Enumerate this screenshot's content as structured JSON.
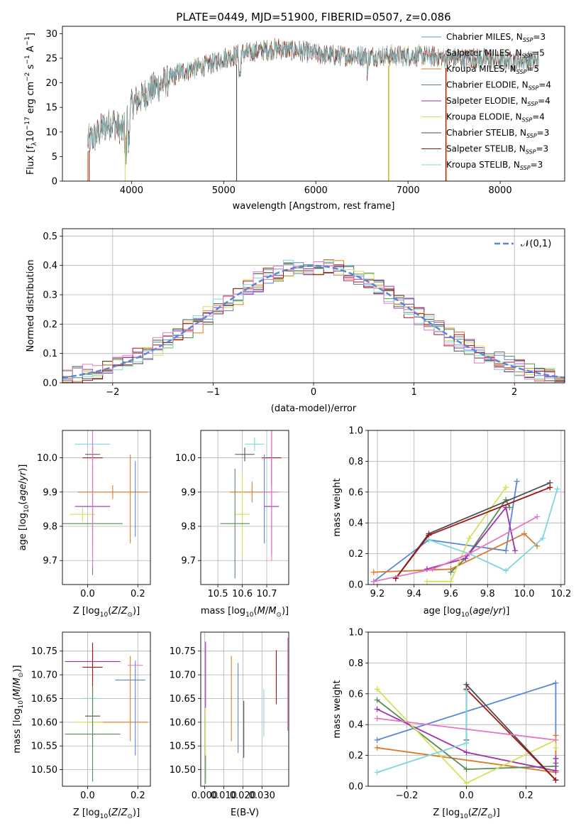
{
  "chart_data": [
    {
      "id": "spectrum",
      "type": "line",
      "title": "PLATE=0449, MJD=51900, FIBERID=0507, z=0.086",
      "xlabel": "wavelength [Angstrom, rest frame]",
      "ylabel": "Flux [f_λ 10^-17 erg cm^-2 s^-1 A^-1]",
      "xlim": [
        3250,
        8700
      ],
      "ylim": [
        0,
        31.5
      ],
      "xticks": [
        4000,
        5000,
        6000,
        7000,
        8000
      ],
      "yticks": [
        0,
        5,
        10,
        15,
        20,
        25,
        30
      ],
      "grid": false,
      "legend_position": "right",
      "legend": [
        {
          "base": "Chabrier MILES, N",
          "sub": "SSP",
          "tail": "=3",
          "color": "#6b8fd6"
        },
        {
          "base": "Salpeter MILES, N",
          "sub": "SSP",
          "tail": "=5",
          "color": "#e0a07a"
        },
        {
          "base": "Kroupa MILES, N",
          "sub": "SSP",
          "tail": "=5",
          "color": "#d97b2c"
        },
        {
          "base": "Chabrier ELODIE, N",
          "sub": "SSP",
          "tail": "=4",
          "color": "#5a8a5a"
        },
        {
          "base": "Salpeter ELODIE, N",
          "sub": "SSP",
          "tail": "=4",
          "color": "#9b30b0"
        },
        {
          "base": "Kroupa ELODIE, N",
          "sub": "SSP",
          "tail": "=4",
          "color": "#d4e157"
        },
        {
          "base": "Chabrier STELIB, N",
          "sub": "SSP",
          "tail": "=3",
          "color": "#4d4d4d"
        },
        {
          "base": "Salpeter STELIB, N",
          "sub": "SSP",
          "tail": "=3",
          "color": "#a01414"
        },
        {
          "base": "Kroupa STELIB, N",
          "sub": "SSP",
          "tail": "=3",
          "color": "#7fd6dc"
        }
      ],
      "continuum": {
        "x": [
          3520,
          3600,
          3700,
          3800,
          3900,
          3950,
          4000,
          4100,
          4200,
          4300,
          4400,
          4500,
          4600,
          4700,
          4800,
          4900,
          5000,
          5200,
          5400,
          5600,
          5800,
          6000,
          6200,
          6400,
          6600,
          6800,
          7000,
          7200,
          7400,
          7600,
          7800,
          8000,
          8200,
          8400
        ],
        "y": [
          8,
          9,
          11,
          12,
          10,
          13,
          15.5,
          17,
          18.5,
          19.5,
          20.5,
          22,
          22.5,
          23,
          23.5,
          24,
          25,
          26,
          26.5,
          27,
          26.5,
          26,
          25.5,
          25.5,
          25.5,
          25.5,
          25.5,
          25.5,
          25,
          25,
          25,
          24.5,
          24.5,
          24.5
        ]
      }
    },
    {
      "id": "residuals",
      "type": "histogram",
      "xlabel": "(data-model)/error",
      "ylabel": "Normed distribution",
      "xlim": [
        -2.5,
        2.5
      ],
      "ylim": [
        0,
        0.525
      ],
      "xticks": [
        -2,
        -1,
        0,
        1,
        2
      ],
      "yticks": [
        0.0,
        0.1,
        0.2,
        0.3,
        0.4,
        0.5
      ],
      "grid": true,
      "bin_width": 0.1,
      "reference_label": "𝒩(0,1)",
      "reference_color": "#5a86d8",
      "colors": [
        "#5a86d8",
        "#d97b2c",
        "#5a8a5a",
        "#9b30b0",
        "#d4e157",
        "#4d4d4d",
        "#a01414",
        "#7fd6dc",
        "#e377c2"
      ]
    },
    {
      "id": "age-vs-Z",
      "type": "scatter",
      "xlabel": "Z [log10(Z/Z⊙)]",
      "ylabel": "age [log10(age/yr)]",
      "xlim": [
        -0.1,
        0.25
      ],
      "ylim": [
        9.63,
        10.08
      ],
      "xticks": [
        0.0,
        0.2
      ],
      "yticks": [
        9.7,
        9.8,
        9.9,
        10.0
      ],
      "grid": true,
      "points": [
        {
          "x": 0.02,
          "y": 10.04,
          "xerr": 0.07,
          "yerr": 0.02,
          "color": "#7fd6dc"
        },
        {
          "x": 0.02,
          "y": 10.01,
          "xerr": 0.03,
          "yerr": 0.02,
          "color": "#4d4d4d"
        },
        {
          "x": 0.02,
          "y": 10.0,
          "xerr": 0.04,
          "yerr": 0.035,
          "color": "#a01414"
        },
        {
          "x": 0.1,
          "y": 9.9,
          "xerr": 0.14,
          "yerr": 0.02,
          "color": "#d97b2c"
        },
        {
          "x": 0.02,
          "y": 9.858,
          "xerr": 0.07,
          "yerr": 0.12,
          "color": "#9b30b0"
        },
        {
          "x": -0.02,
          "y": 9.835,
          "xerr": 0.05,
          "yerr": 0.02,
          "color": "#d4e157"
        },
        {
          "x": 0.02,
          "y": 9.808,
          "xerr": 0.12,
          "yerr": 0.15,
          "color": "#5a8a5a"
        },
        {
          "x": 0.17,
          "y": 9.88,
          "xerr": 0.0,
          "yerr": 0.13,
          "color": "#d97b2c"
        },
        {
          "x": 0.19,
          "y": 9.88,
          "xerr": 0.0,
          "yerr": 0.11,
          "color": "#5a86d8"
        },
        {
          "x": 0.02,
          "y": 9.88,
          "xerr": 0.0,
          "yerr": 0.2,
          "color": "#e377c2"
        }
      ]
    },
    {
      "id": "age-vs-mass",
      "type": "scatter",
      "xlabel": "mass [log10(M/M⊙)]",
      "ylabel": "",
      "xlim": [
        10.43,
        10.79
      ],
      "ylim": [
        9.63,
        10.08
      ],
      "xticks": [
        10.5,
        10.6,
        10.7
      ],
      "yticks": [
        9.7,
        9.8,
        9.9,
        10.0
      ],
      "grid": true,
      "points": [
        {
          "x": 10.65,
          "y": 10.04,
          "xerr": 0.04,
          "yerr": 0.02,
          "color": "#7fd6dc"
        },
        {
          "x": 10.61,
          "y": 10.01,
          "xerr": 0.04,
          "yerr": 0.02,
          "color": "#4d4d4d"
        },
        {
          "x": 10.72,
          "y": 10.0,
          "xerr": 0.04,
          "yerr": 0.08,
          "color": "#a01414"
        },
        {
          "x": 10.64,
          "y": 9.9,
          "xerr": 0.09,
          "yerr": 0.03,
          "color": "#d97b2c"
        },
        {
          "x": 10.72,
          "y": 9.858,
          "xerr": 0.03,
          "yerr": 0.14,
          "color": "#9b30b0"
        },
        {
          "x": 10.6,
          "y": 9.835,
          "xerr": 0.03,
          "yerr": 0.12,
          "color": "#d4e157"
        },
        {
          "x": 10.57,
          "y": 9.808,
          "xerr": 0.06,
          "yerr": 0.16,
          "color": "#5a8a5a"
        },
        {
          "x": 10.69,
          "y": 9.88,
          "xerr": 0.0,
          "yerr": 0.13,
          "color": "#5a86d8"
        },
        {
          "x": 10.72,
          "y": 9.9,
          "xerr": 0.03,
          "yerr": 0.2,
          "color": "#e377c2"
        }
      ]
    },
    {
      "id": "weight-vs-age",
      "type": "line",
      "xlabel": "age [log10(age/yr)]",
      "ylabel": "mass weight",
      "xlim": [
        9.15,
        10.22
      ],
      "ylim": [
        0,
        1
      ],
      "xticks": [
        9.2,
        9.4,
        9.6,
        9.8,
        10.0,
        10.2
      ],
      "yticks": [
        0.0,
        0.2,
        0.4,
        0.6,
        0.8,
        1.0
      ],
      "grid": true,
      "series": [
        {
          "color": "#5a86d8",
          "x": [
            9.18,
            9.48,
            9.9,
            9.96
          ],
          "y": [
            0.02,
            0.29,
            0.22,
            0.67
          ]
        },
        {
          "color": "#d97b2c",
          "x": [
            9.18,
            9.6,
            10.0,
            10.07
          ],
          "y": [
            0.08,
            0.1,
            0.33,
            0.25
          ]
        },
        {
          "color": "#5a8a5a",
          "x": [
            9.6,
            9.68,
            9.9,
            9.92
          ],
          "y": [
            0.08,
            0.17,
            0.55,
            0.5
          ]
        },
        {
          "color": "#9b30b0",
          "x": [
            9.47,
            9.68,
            9.9,
            9.95
          ],
          "y": [
            0.1,
            0.17,
            0.5,
            0.22
          ]
        },
        {
          "color": "#d4e157",
          "x": [
            9.47,
            9.6,
            9.7,
            9.9
          ],
          "y": [
            0.02,
            0.02,
            0.3,
            0.63
          ]
        },
        {
          "color": "#4d4d4d",
          "x": [
            9.3,
            9.48,
            10.14
          ],
          "y": [
            0.04,
            0.33,
            0.66
          ]
        },
        {
          "color": "#a01414",
          "x": [
            9.3,
            9.48,
            10.14
          ],
          "y": [
            0.04,
            0.32,
            0.63
          ]
        },
        {
          "color": "#7fd6dc",
          "x": [
            9.48,
            9.7,
            9.9,
            10.1,
            10.18
          ],
          "y": [
            0.29,
            0.2,
            0.09,
            0.3,
            0.62
          ]
        },
        {
          "color": "#e377c2",
          "x": [
            9.18,
            9.5,
            9.7,
            10.07
          ],
          "y": [
            0.02,
            0.1,
            0.2,
            0.44
          ]
        }
      ]
    },
    {
      "id": "mass-vs-Z",
      "type": "scatter",
      "xlabel": "Z [log10(Z/Z⊙)]",
      "ylabel": "mass [log10(M/M⊙)]",
      "xlim": [
        -0.1,
        0.25
      ],
      "ylim": [
        10.465,
        10.79
      ],
      "xticks": [
        0.0,
        0.2
      ],
      "yticks": [
        10.5,
        10.55,
        10.6,
        10.65,
        10.7,
        10.75
      ],
      "grid": true,
      "points": [
        {
          "x": 0.02,
          "y": 10.728,
          "xerr": 0.11,
          "yerr": 0.04,
          "color": "#9b30b0"
        },
        {
          "x": 0.02,
          "y": 10.716,
          "xerr": 0.04,
          "yerr": 0.05,
          "color": "#a01414"
        },
        {
          "x": 0.17,
          "y": 10.689,
          "xerr": 0.06,
          "yerr": 0.0,
          "color": "#5a86d8"
        },
        {
          "x": 0.02,
          "y": 10.65,
          "xerr": 0.04,
          "yerr": 0.02,
          "color": "#7fd6dc"
        },
        {
          "x": 0.02,
          "y": 10.613,
          "xerr": 0.03,
          "yerr": 0.06,
          "color": "#4d4d4d"
        },
        {
          "x": 0.12,
          "y": 10.6,
          "xerr": 0.12,
          "yerr": 0.0,
          "color": "#d97b2c"
        },
        {
          "x": 0.0,
          "y": 10.6,
          "xerr": 0.06,
          "yerr": 0.0,
          "color": "#d4e157"
        },
        {
          "x": 0.02,
          "y": 10.575,
          "xerr": 0.11,
          "yerr": 0.1,
          "color": "#5a8a5a"
        },
        {
          "x": 0.17,
          "y": 10.65,
          "xerr": 0.0,
          "yerr": 0.09,
          "color": "#d97b2c"
        },
        {
          "x": 0.19,
          "y": 10.63,
          "xerr": 0.0,
          "yerr": 0.1,
          "color": "#5a86d8"
        },
        {
          "x": 0.19,
          "y": 10.72,
          "xerr": 0.03,
          "yerr": 0.0,
          "color": "#e377c2"
        }
      ]
    },
    {
      "id": "mass-vs-EBV",
      "type": "scatter",
      "xlabel": "E(B-V)",
      "ylabel": "",
      "xlim": [
        -0.002,
        0.044
      ],
      "ylim": [
        10.465,
        10.79
      ],
      "xticks": [
        0.0,
        0.01,
        0.02,
        0.03
      ],
      "yticks": [
        10.5,
        10.55,
        10.6,
        10.65,
        10.7,
        10.75
      ],
      "grid": true,
      "points": [
        {
          "x": 0.0005,
          "y": 10.7,
          "yerr": 0.07,
          "color": "#9b30b0"
        },
        {
          "x": 0.0005,
          "y": 10.56,
          "yerr": 0.07,
          "color": "#d4e157"
        },
        {
          "x": 0.0005,
          "y": 10.5,
          "yerr": 0.03,
          "color": "#5a8a5a"
        },
        {
          "x": 0.014,
          "y": 10.65,
          "yerr": 0.09,
          "color": "#d97b2c"
        },
        {
          "x": 0.0175,
          "y": 10.63,
          "yerr": 0.095,
          "color": "#5a86d8"
        },
        {
          "x": 0.0205,
          "y": 10.585,
          "yerr": 0.06,
          "color": "#4d4d4d"
        },
        {
          "x": 0.031,
          "y": 10.62,
          "yerr": 0.05,
          "color": "#7fd6dc"
        },
        {
          "x": 0.0375,
          "y": 10.695,
          "yerr": 0.057,
          "color": "#a01414"
        },
        {
          "x": 0.0435,
          "y": 10.68,
          "yerr": 0.098,
          "color": "#e377c2"
        }
      ]
    },
    {
      "id": "weight-vs-Z",
      "type": "line",
      "xlabel": "Z [log10(Z/Z⊙)]",
      "ylabel": "mass weight",
      "xlim": [
        -0.33,
        0.33
      ],
      "ylim": [
        0,
        1
      ],
      "xticks": [
        -0.2,
        0.0,
        0.2
      ],
      "yticks": [
        0.0,
        0.2,
        0.4,
        0.6,
        0.8,
        1.0
      ],
      "grid": true,
      "series": [
        {
          "color": "#5a86d8",
          "x": [
            -0.3,
            0.3,
            0.3
          ],
          "y": [
            0.3,
            0.67,
            0.1
          ]
        },
        {
          "color": "#d97b2c",
          "x": [
            -0.3,
            0.3,
            0.3
          ],
          "y": [
            0.25,
            0.09,
            0.33
          ]
        },
        {
          "color": "#5a8a5a",
          "x": [
            -0.3,
            0.0,
            0.3,
            0.3
          ],
          "y": [
            0.56,
            0.11,
            0.13,
            0.15
          ]
        },
        {
          "color": "#9b30b0",
          "x": [
            -0.3,
            0.0,
            0.3,
            0.3
          ],
          "y": [
            0.5,
            0.22,
            0.1,
            0.18
          ]
        },
        {
          "color": "#d4e157",
          "x": [
            -0.3,
            0.0,
            0.3,
            0.3
          ],
          "y": [
            0.63,
            0.02,
            0.3,
            0.25
          ]
        },
        {
          "color": "#4d4d4d",
          "x": [
            0.0,
            0.0,
            0.3
          ],
          "y": [
            0.3,
            0.66,
            0.04
          ]
        },
        {
          "color": "#a01414",
          "x": [
            0.0,
            0.3
          ],
          "y": [
            0.63,
            0.04
          ]
        },
        {
          "color": "#7fd6dc",
          "x": [
            -0.3,
            0.0,
            0.0
          ],
          "y": [
            0.09,
            0.28,
            0.62
          ]
        },
        {
          "color": "#e377c2",
          "x": [
            -0.3,
            0.3
          ],
          "y": [
            0.44,
            0.3
          ]
        }
      ]
    }
  ]
}
